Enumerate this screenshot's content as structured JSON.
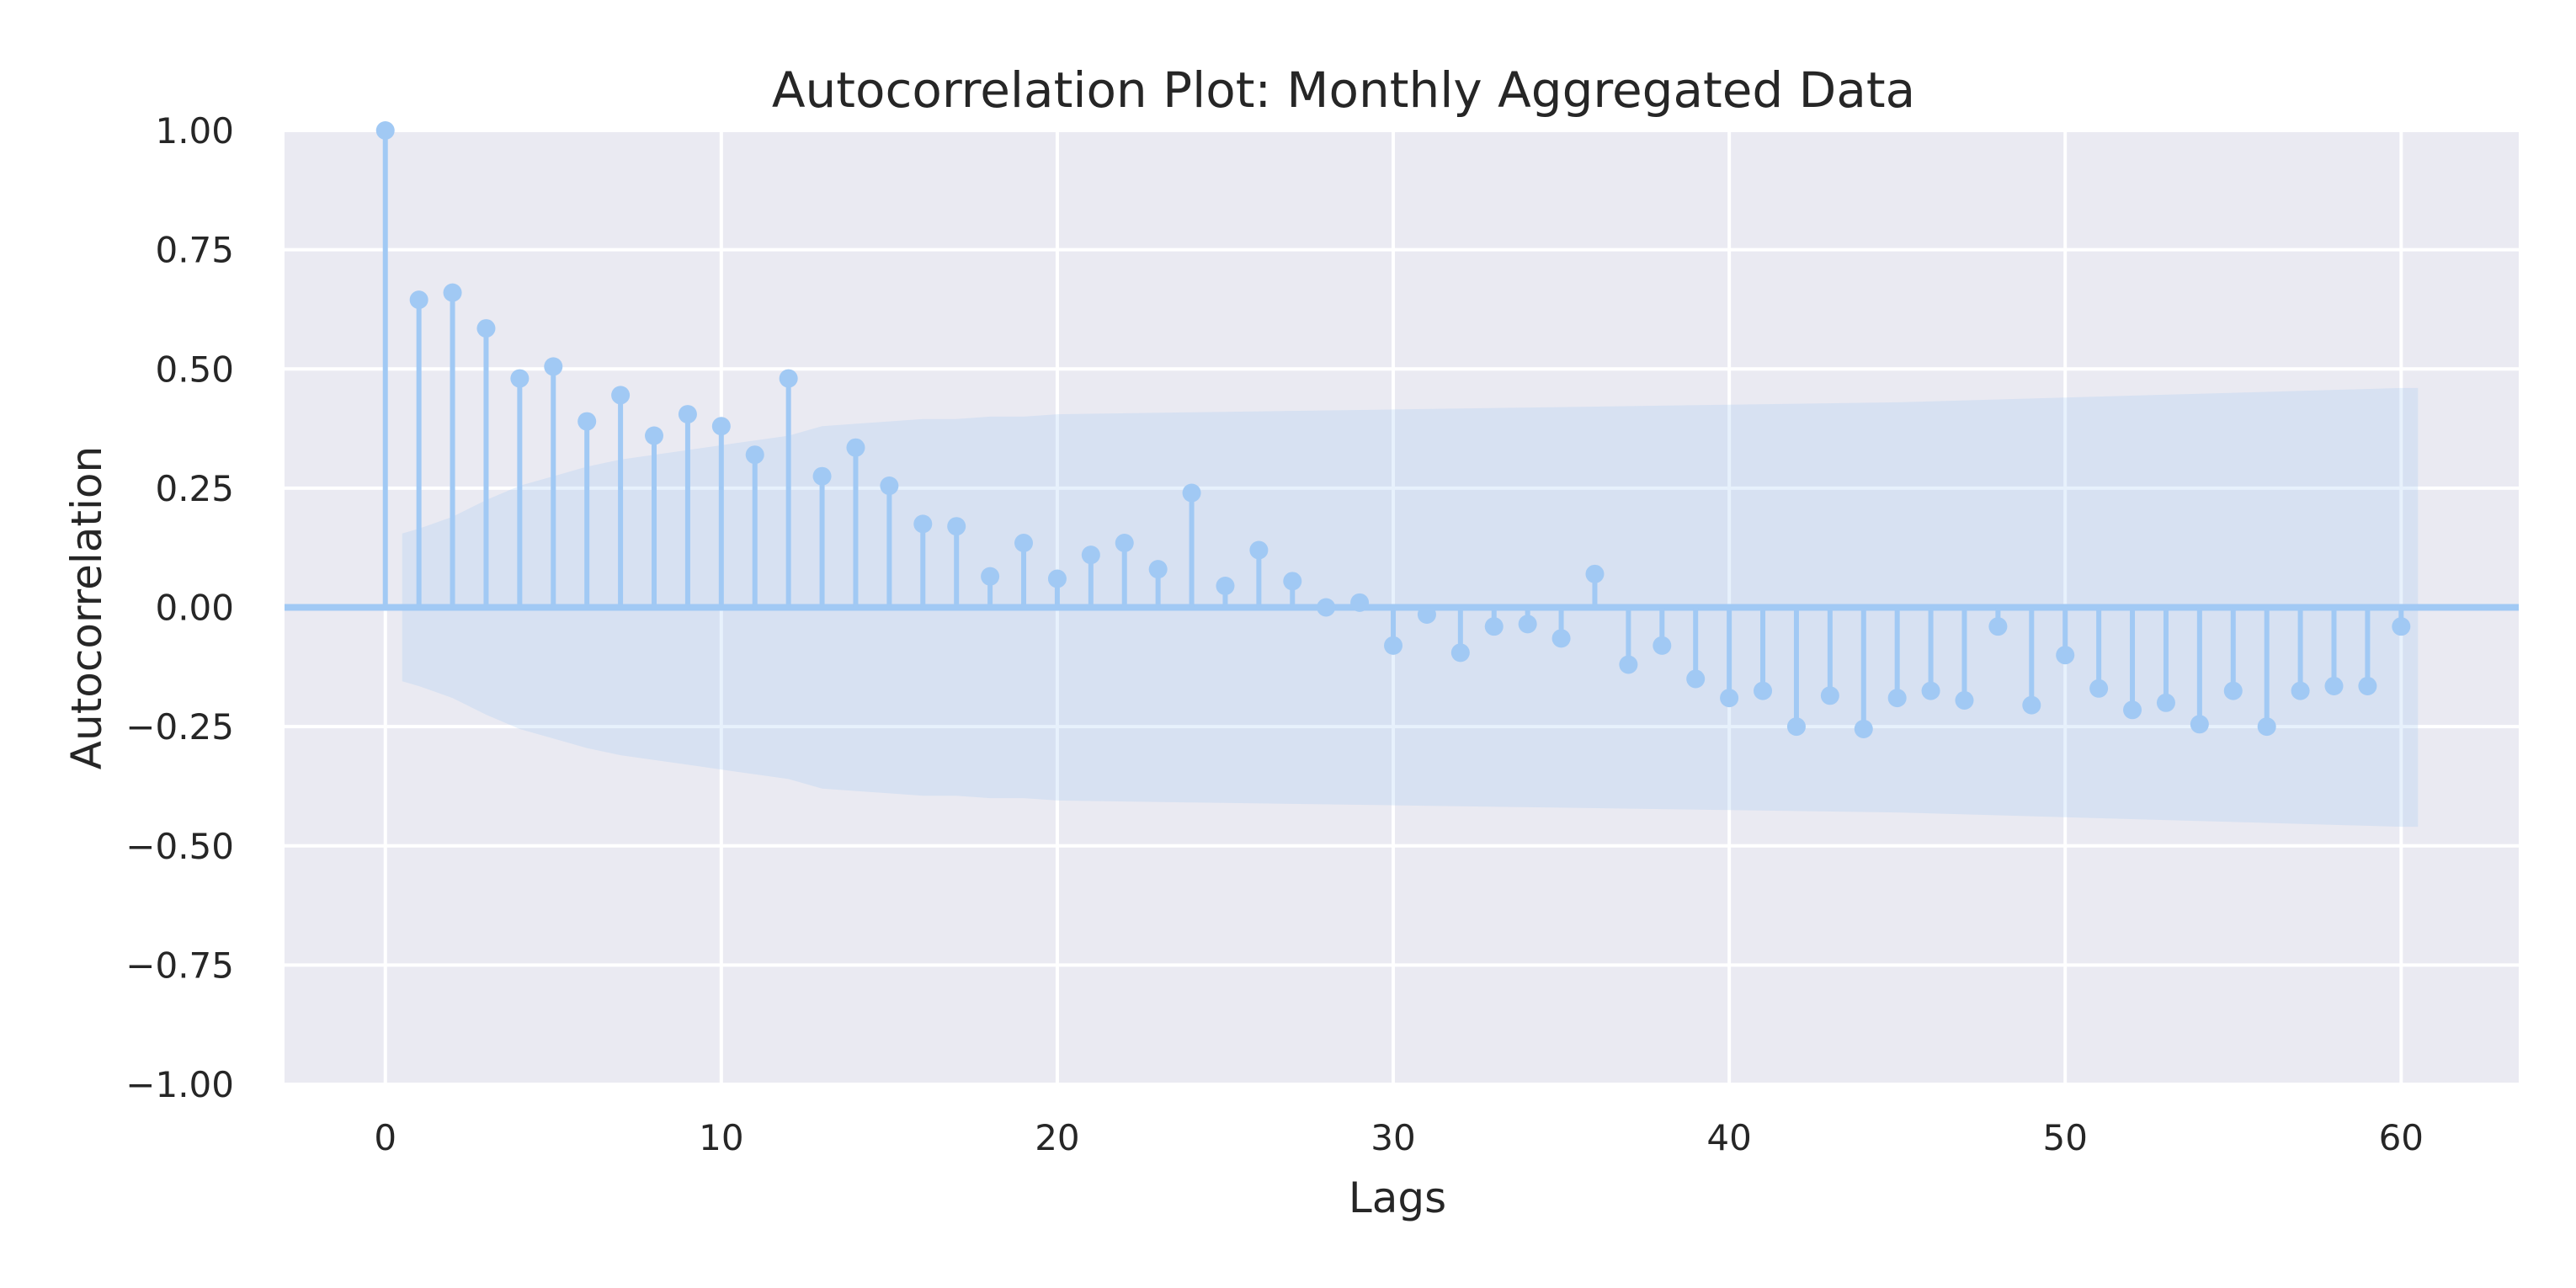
{
  "chart_data": {
    "type": "stem",
    "title": "Autocorrelation Plot: Monthly Aggregated Data",
    "xlabel": "Lags",
    "ylabel": "Autocorrelation",
    "xlim": [
      -3,
      63.5
    ],
    "ylim": [
      -1.0,
      1.0
    ],
    "xticks": [
      0,
      10,
      20,
      30,
      40,
      50,
      60
    ],
    "xtick_labels": [
      "0",
      "10",
      "20",
      "30",
      "40",
      "50",
      "60"
    ],
    "yticks": [
      1.0,
      0.75,
      0.5,
      0.25,
      0.0,
      -0.25,
      -0.5,
      -0.75,
      -1.0
    ],
    "ytick_labels": [
      "1.00",
      "0.75",
      "0.50",
      "0.25",
      "0.00",
      "−0.25",
      "−0.50",
      "−0.75",
      "−1.00"
    ],
    "grid": true,
    "colors": {
      "stem": "#a1c9f4",
      "band": "#a1c9f4",
      "background": "#eaeaf2",
      "grid": "#ffffff",
      "text": "#262626"
    },
    "x": [
      0,
      1,
      2,
      3,
      4,
      5,
      6,
      7,
      8,
      9,
      10,
      11,
      12,
      13,
      14,
      15,
      16,
      17,
      18,
      19,
      20,
      21,
      22,
      23,
      24,
      25,
      26,
      27,
      28,
      29,
      30,
      31,
      32,
      33,
      34,
      35,
      36,
      37,
      38,
      39,
      40,
      41,
      42,
      43,
      44,
      45,
      46,
      47,
      48,
      49,
      50,
      51,
      52,
      53,
      54,
      55,
      56,
      57,
      58,
      59,
      60
    ],
    "values": [
      1.0,
      0.645,
      0.66,
      0.585,
      0.48,
      0.505,
      0.39,
      0.445,
      0.36,
      0.405,
      0.38,
      0.32,
      0.48,
      0.275,
      0.335,
      0.255,
      0.175,
      0.17,
      0.065,
      0.135,
      0.06,
      0.11,
      0.135,
      0.08,
      0.24,
      0.045,
      0.12,
      0.055,
      0.0,
      0.01,
      -0.08,
      -0.015,
      -0.095,
      -0.04,
      -0.035,
      -0.065,
      0.07,
      -0.12,
      -0.08,
      -0.15,
      -0.19,
      -0.175,
      -0.25,
      -0.185,
      -0.255,
      -0.19,
      -0.175,
      -0.195,
      -0.04,
      -0.205,
      -0.1,
      -0.17,
      -0.215,
      -0.2,
      -0.245,
      -0.175,
      -0.25,
      -0.175,
      -0.165,
      -0.165,
      -0.04
    ],
    "confidence_band": {
      "x": [
        0.5,
        1,
        2,
        3,
        4,
        5,
        6,
        7,
        8,
        9,
        10,
        11,
        12,
        13,
        14,
        15,
        16,
        17,
        18,
        19,
        20,
        25,
        30,
        35,
        40,
        45,
        50,
        55,
        60,
        60.5
      ],
      "upper": [
        0.155,
        0.165,
        0.19,
        0.225,
        0.255,
        0.275,
        0.295,
        0.31,
        0.32,
        0.33,
        0.34,
        0.35,
        0.36,
        0.38,
        0.385,
        0.39,
        0.395,
        0.395,
        0.4,
        0.4,
        0.405,
        0.41,
        0.415,
        0.42,
        0.425,
        0.43,
        0.44,
        0.45,
        0.46,
        0.46
      ],
      "lower": [
        -0.155,
        -0.165,
        -0.19,
        -0.225,
        -0.255,
        -0.275,
        -0.295,
        -0.31,
        -0.32,
        -0.33,
        -0.34,
        -0.35,
        -0.36,
        -0.38,
        -0.385,
        -0.39,
        -0.395,
        -0.395,
        -0.4,
        -0.4,
        -0.405,
        -0.41,
        -0.415,
        -0.42,
        -0.425,
        -0.43,
        -0.44,
        -0.45,
        -0.46,
        -0.46
      ]
    }
  }
}
